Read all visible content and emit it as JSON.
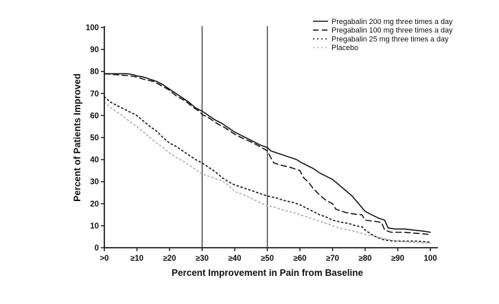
{
  "figure": {
    "background": "#ffffff",
    "axis_color": "#1a1a1a",
    "reference_line_color": "#3a3a3a"
  },
  "chart_data": {
    "type": "line",
    "title": "",
    "xlabel": "Percent Improvement in Pain from Baseline",
    "ylabel": "Percent of Patients Improved",
    "xlim": [
      0,
      100
    ],
    "ylim": [
      0,
      100
    ],
    "grid": false,
    "legend_position": "top-right",
    "x_tick_values": [
      0,
      10,
      20,
      30,
      40,
      50,
      60,
      70,
      80,
      90,
      100
    ],
    "x_tick_labels": [
      ">0",
      "≥10",
      "≥20",
      "≥30",
      "≥40",
      "≥50",
      "≥60",
      "≥70",
      "≥80",
      "≥90",
      "100"
    ],
    "y_tick_values": [
      0,
      10,
      20,
      30,
      40,
      50,
      60,
      70,
      80,
      90,
      100
    ],
    "y_tick_labels": [
      "0",
      "10",
      "20",
      "30",
      "40",
      "50",
      "60",
      "70",
      "80",
      "90",
      "100"
    ],
    "reference_lines_x": [
      30,
      50
    ],
    "series": [
      {
        "name": "Pregabalin 200 mg three times a day",
        "style": "solid",
        "color": "#111111",
        "width": 1.6,
        "dash": "",
        "points": [
          [
            0,
            79
          ],
          [
            4,
            79
          ],
          [
            7,
            79
          ],
          [
            9,
            78.5
          ],
          [
            10,
            78
          ],
          [
            12,
            77.5
          ],
          [
            14,
            76.5
          ],
          [
            16,
            75.5
          ],
          [
            18,
            74
          ],
          [
            20,
            72
          ],
          [
            22,
            70
          ],
          [
            24,
            68
          ],
          [
            26,
            66
          ],
          [
            28,
            63.5
          ],
          [
            30,
            62
          ],
          [
            32,
            60
          ],
          [
            34,
            58
          ],
          [
            36,
            56.5
          ],
          [
            38,
            54.5
          ],
          [
            40,
            52.5
          ],
          [
            42,
            51
          ],
          [
            44,
            49.5
          ],
          [
            46,
            48
          ],
          [
            48,
            46.5
          ],
          [
            50,
            45.5
          ],
          [
            51,
            44
          ],
          [
            53,
            43
          ],
          [
            55,
            42
          ],
          [
            57,
            41
          ],
          [
            59,
            40
          ],
          [
            60,
            39
          ],
          [
            62,
            37.5
          ],
          [
            64,
            36
          ],
          [
            66,
            34
          ],
          [
            68,
            32.5
          ],
          [
            70,
            31
          ],
          [
            72,
            28.5
          ],
          [
            74,
            26
          ],
          [
            76,
            23.5
          ],
          [
            78,
            20
          ],
          [
            80,
            16.5
          ],
          [
            82,
            15
          ],
          [
            84,
            13.5
          ],
          [
            86,
            12.5
          ],
          [
            87,
            9
          ],
          [
            89,
            8.5
          ],
          [
            92,
            8.5
          ],
          [
            95,
            8
          ],
          [
            98,
            7.5
          ],
          [
            100,
            7
          ]
        ]
      },
      {
        "name": "Pregabalin 100 mg three times a day",
        "style": "dashed",
        "color": "#111111",
        "width": 1.6,
        "dash": "8 5",
        "points": [
          [
            0,
            79
          ],
          [
            4,
            78.5
          ],
          [
            8,
            78
          ],
          [
            10,
            77.5
          ],
          [
            12,
            76.5
          ],
          [
            15,
            75.5
          ],
          [
            17,
            74
          ],
          [
            20,
            71.5
          ],
          [
            22,
            69
          ],
          [
            25,
            66.5
          ],
          [
            27,
            64
          ],
          [
            29,
            62
          ],
          [
            30,
            60.5
          ],
          [
            32,
            59
          ],
          [
            35,
            56
          ],
          [
            37,
            54.5
          ],
          [
            40,
            51.5
          ],
          [
            42,
            50
          ],
          [
            45,
            48
          ],
          [
            47,
            46.5
          ],
          [
            50,
            44
          ],
          [
            51,
            41
          ],
          [
            52,
            38.5
          ],
          [
            54,
            37.5
          ],
          [
            57,
            36.5
          ],
          [
            60,
            35
          ],
          [
            61,
            32
          ],
          [
            63,
            29
          ],
          [
            64,
            27
          ],
          [
            66,
            24
          ],
          [
            68,
            21.5
          ],
          [
            70,
            20
          ],
          [
            71,
            17.5
          ],
          [
            74,
            16
          ],
          [
            77,
            15.2
          ],
          [
            79,
            15
          ],
          [
            80,
            12.5
          ],
          [
            83,
            12
          ],
          [
            85,
            11.5
          ],
          [
            86,
            8
          ],
          [
            88,
            7
          ],
          [
            92,
            7
          ],
          [
            96,
            6.5
          ],
          [
            100,
            6
          ]
        ]
      },
      {
        "name": "Pregabalin 25 mg three times a day",
        "style": "dotted",
        "color": "#222222",
        "width": 1.8,
        "dash": "2 4",
        "points": [
          [
            0,
            68.5
          ],
          [
            2,
            66
          ],
          [
            4,
            64.5
          ],
          [
            6,
            63
          ],
          [
            8,
            61.5
          ],
          [
            10,
            60
          ],
          [
            12,
            57.5
          ],
          [
            14,
            55
          ],
          [
            16,
            53
          ],
          [
            18,
            50
          ],
          [
            20,
            47.5
          ],
          [
            22,
            46
          ],
          [
            24,
            44
          ],
          [
            26,
            42
          ],
          [
            28,
            40
          ],
          [
            30,
            38.5
          ],
          [
            32,
            36.5
          ],
          [
            34,
            34.5
          ],
          [
            36,
            32
          ],
          [
            38,
            30
          ],
          [
            40,
            28.5
          ],
          [
            43,
            27
          ],
          [
            45,
            26
          ],
          [
            47,
            25
          ],
          [
            50,
            23.5
          ],
          [
            53,
            22.5
          ],
          [
            55,
            21.5
          ],
          [
            58,
            20.5
          ],
          [
            60,
            19.5
          ],
          [
            62,
            18
          ],
          [
            64,
            16.5
          ],
          [
            66,
            15
          ],
          [
            68,
            14
          ],
          [
            70,
            12.5
          ],
          [
            73,
            11.5
          ],
          [
            75,
            11
          ],
          [
            77,
            10
          ],
          [
            79,
            9.5
          ],
          [
            80,
            8
          ],
          [
            82,
            6
          ],
          [
            84,
            4.5
          ],
          [
            86,
            3.5
          ],
          [
            89,
            3
          ],
          [
            93,
            3
          ],
          [
            96,
            3
          ],
          [
            100,
            2.5
          ]
        ]
      },
      {
        "name": "Placebo",
        "style": "dotted",
        "color": "#b4b4b4",
        "width": 1.8,
        "dash": "2 4",
        "points": [
          [
            0,
            66
          ],
          [
            2,
            63.5
          ],
          [
            4,
            61.5
          ],
          [
            6,
            59.5
          ],
          [
            8,
            57
          ],
          [
            10,
            55
          ],
          [
            12,
            52.5
          ],
          [
            14,
            50
          ],
          [
            16,
            47.5
          ],
          [
            18,
            45.5
          ],
          [
            20,
            43
          ],
          [
            22,
            41
          ],
          [
            24,
            39.5
          ],
          [
            26,
            37.5
          ],
          [
            28,
            35.5
          ],
          [
            30,
            33.5
          ],
          [
            32,
            32.5
          ],
          [
            34,
            31.5
          ],
          [
            36,
            30.5
          ],
          [
            38,
            28.5
          ],
          [
            40,
            25.5
          ],
          [
            42,
            24.5
          ],
          [
            45,
            22.5
          ],
          [
            47,
            21
          ],
          [
            50,
            19
          ],
          [
            52,
            18.5
          ],
          [
            55,
            17
          ],
          [
            58,
            16
          ],
          [
            60,
            15
          ],
          [
            62,
            14
          ],
          [
            65,
            12.5
          ],
          [
            68,
            11
          ],
          [
            70,
            10
          ],
          [
            72,
            9
          ],
          [
            75,
            8
          ],
          [
            78,
            7
          ],
          [
            80,
            6
          ],
          [
            82,
            5.5
          ],
          [
            85,
            4.5
          ],
          [
            88,
            3.5
          ],
          [
            90,
            3
          ],
          [
            94,
            2.5
          ],
          [
            100,
            2
          ]
        ]
      }
    ]
  }
}
